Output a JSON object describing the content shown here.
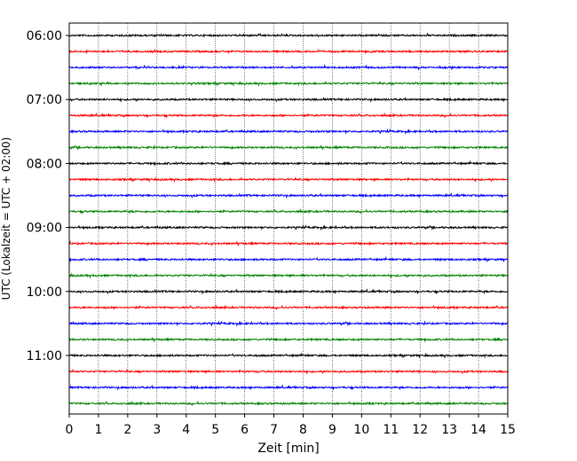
{
  "chart_data": {
    "type": "line",
    "title": "",
    "xlabel": "Zeit  [min]",
    "ylabel": "UTC (Lokalzeit = UTC + 02:00)",
    "xlim": [
      0,
      15
    ],
    "x_ticks": [
      0,
      1,
      2,
      3,
      4,
      5,
      6,
      7,
      8,
      9,
      10,
      11,
      12,
      13,
      14,
      15
    ],
    "x_tick_labels": [
      "0",
      "1",
      "2",
      "3",
      "4",
      "5",
      "6",
      "7",
      "8",
      "9",
      "10",
      "11",
      "12",
      "13",
      "14",
      "15"
    ],
    "y_tick_labels": [
      "06:00",
      "07:00",
      "08:00",
      "09:00",
      "10:00",
      "11:00"
    ],
    "vertical_grid": true,
    "trace_colors": [
      "#000000",
      "#ff0000",
      "#0000ff",
      "#008000"
    ],
    "traces": [
      {
        "start": "06:00",
        "color": "#000000"
      },
      {
        "start": "06:15",
        "color": "#ff0000"
      },
      {
        "start": "06:30",
        "color": "#0000ff"
      },
      {
        "start": "06:45",
        "color": "#008000"
      },
      {
        "start": "07:00",
        "color": "#000000"
      },
      {
        "start": "07:15",
        "color": "#ff0000"
      },
      {
        "start": "07:30",
        "color": "#0000ff"
      },
      {
        "start": "07:45",
        "color": "#008000"
      },
      {
        "start": "08:00",
        "color": "#000000"
      },
      {
        "start": "08:15",
        "color": "#ff0000"
      },
      {
        "start": "08:30",
        "color": "#0000ff"
      },
      {
        "start": "08:45",
        "color": "#008000"
      },
      {
        "start": "09:00",
        "color": "#000000"
      },
      {
        "start": "09:15",
        "color": "#ff0000"
      },
      {
        "start": "09:30",
        "color": "#0000ff"
      },
      {
        "start": "09:45",
        "color": "#008000"
      },
      {
        "start": "10:00",
        "color": "#000000"
      },
      {
        "start": "10:15",
        "color": "#ff0000"
      },
      {
        "start": "10:30",
        "color": "#0000ff"
      },
      {
        "start": "10:45",
        "color": "#008000"
      },
      {
        "start": "11:00",
        "color": "#000000"
      },
      {
        "start": "11:15",
        "color": "#ff0000"
      },
      {
        "start": "11:30",
        "color": "#0000ff"
      },
      {
        "start": "11:45",
        "color": "#008000"
      }
    ]
  }
}
